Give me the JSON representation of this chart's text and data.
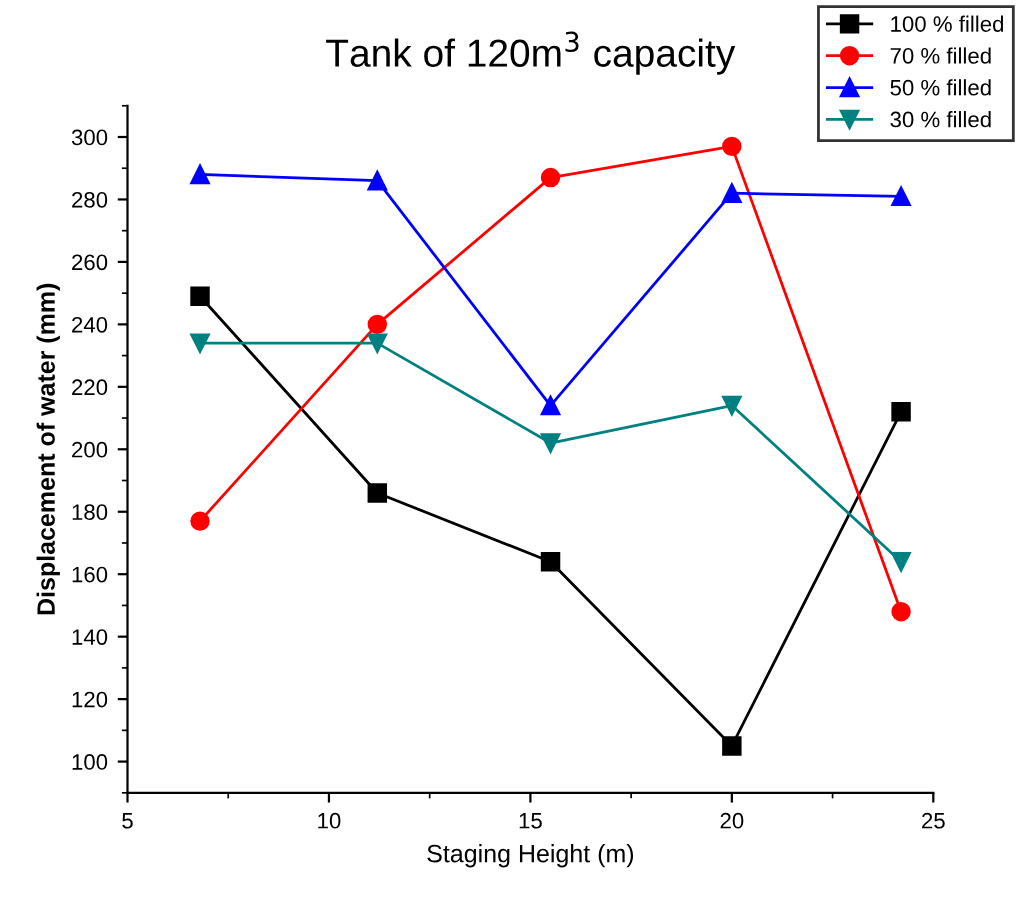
{
  "chart_data": {
    "type": "line",
    "title": "Tank of 120m$^{3}$ capacity",
    "xlabel": "Staging Height (m)",
    "ylabel": "Displacement of water (mm)",
    "x": [
      6.8,
      11.2,
      15.5,
      20,
      24.2
    ],
    "series": [
      {
        "name": "100 % filled",
        "color": "#000000",
        "marker": "square",
        "values": [
          249,
          186,
          164,
          105,
          212
        ]
      },
      {
        "name": "70 % filled",
        "color": "#ff0000",
        "marker": "circle",
        "values": [
          177,
          240,
          287,
          297,
          148
        ]
      },
      {
        "name": "50 % filled",
        "color": "#0000ff",
        "marker": "triangle",
        "values": [
          288,
          286,
          214,
          282,
          281
        ]
      },
      {
        "name": "30 % filled",
        "color": "#008080",
        "marker": "triangle_down",
        "values": [
          234,
          234,
          202,
          214,
          164
        ]
      }
    ],
    "xlim": [
      5,
      25
    ],
    "xticks": [
      5,
      10,
      15,
      20,
      25
    ],
    "ylim": [
      90,
      310
    ],
    "yticks": [
      100,
      120,
      140,
      160,
      180,
      200,
      220,
      240,
      260,
      280,
      300
    ],
    "grid": false,
    "legend": "top right"
  }
}
